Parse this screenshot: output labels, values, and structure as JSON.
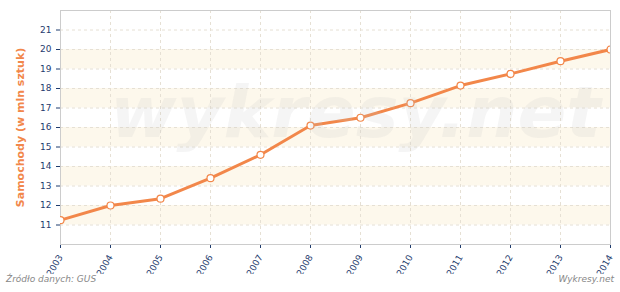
{
  "chart_data": {
    "type": "line",
    "y_label": "Samochody (w mln sztuk)",
    "x": [
      2003,
      2004,
      2005,
      2006,
      2007,
      2008,
      2009,
      2010,
      2011,
      2012,
      2013,
      2014
    ],
    "values": [
      11.25,
      12.0,
      12.35,
      13.4,
      14.6,
      16.1,
      16.5,
      17.25,
      18.15,
      18.75,
      19.4,
      20.0
    ],
    "color": "#f2874a",
    "marker": "circle",
    "xlim": [
      2003,
      2014
    ],
    "xticks": [
      2003,
      2004,
      2005,
      2006,
      2007,
      2008,
      2009,
      2010,
      2011,
      2012,
      2013,
      2014
    ],
    "ylim": [
      10,
      22
    ],
    "yticks": [
      11,
      12,
      13,
      14,
      15,
      16,
      17,
      18,
      19,
      20,
      21
    ],
    "grid": true,
    "annotations": [
      "Źródło danych: GUS",
      "Wykresy.net",
      "wykresy.net"
    ]
  }
}
